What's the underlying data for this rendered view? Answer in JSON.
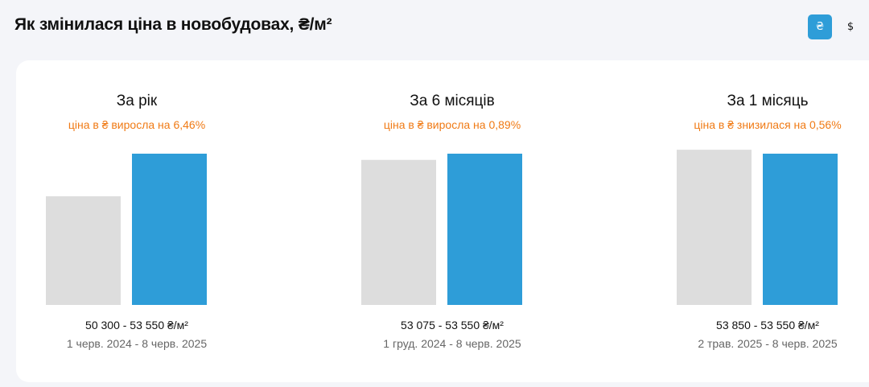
{
  "header": {
    "title": "Як змінилася ціна в новобудовах, ₴/м²"
  },
  "currency_toggle": {
    "uah_label": "₴",
    "usd_label": "$",
    "selected": "uah",
    "active_color": "#2e9dd8"
  },
  "colors": {
    "start_bar": "#dddddd",
    "end_bar": "#2e9dd8",
    "change_text": "#f07a14"
  },
  "chart_data": [
    {
      "type": "bar",
      "title": "За рік",
      "subtitle": "ціна в ₴ виросла на 6,46%",
      "categories": [
        "1 черв. 2024",
        "8 черв. 2025"
      ],
      "values": [
        50300,
        53550
      ],
      "value_label": "50 300 - 53 550 ₴/м²",
      "date_label": "1 черв. 2024 - 8 черв. 2025"
    },
    {
      "type": "bar",
      "title": "За 6 місяців",
      "subtitle": "ціна в ₴ виросла на 0,89%",
      "categories": [
        "1 груд. 2024",
        "8 черв. 2025"
      ],
      "values": [
        53075,
        53550
      ],
      "value_label": "53 075 - 53 550 ₴/м²",
      "date_label": "1 груд. 2024 - 8 черв. 2025"
    },
    {
      "type": "bar",
      "title": "За 1 місяць",
      "subtitle": "ціна в ₴ знизилася на 0,56%",
      "categories": [
        "2 трав. 2025",
        "8 черв. 2025"
      ],
      "values": [
        53850,
        53550
      ],
      "value_label": "53 850 - 53 550 ₴/м²",
      "date_label": "2 трав. 2025 - 8 черв. 2025"
    }
  ]
}
